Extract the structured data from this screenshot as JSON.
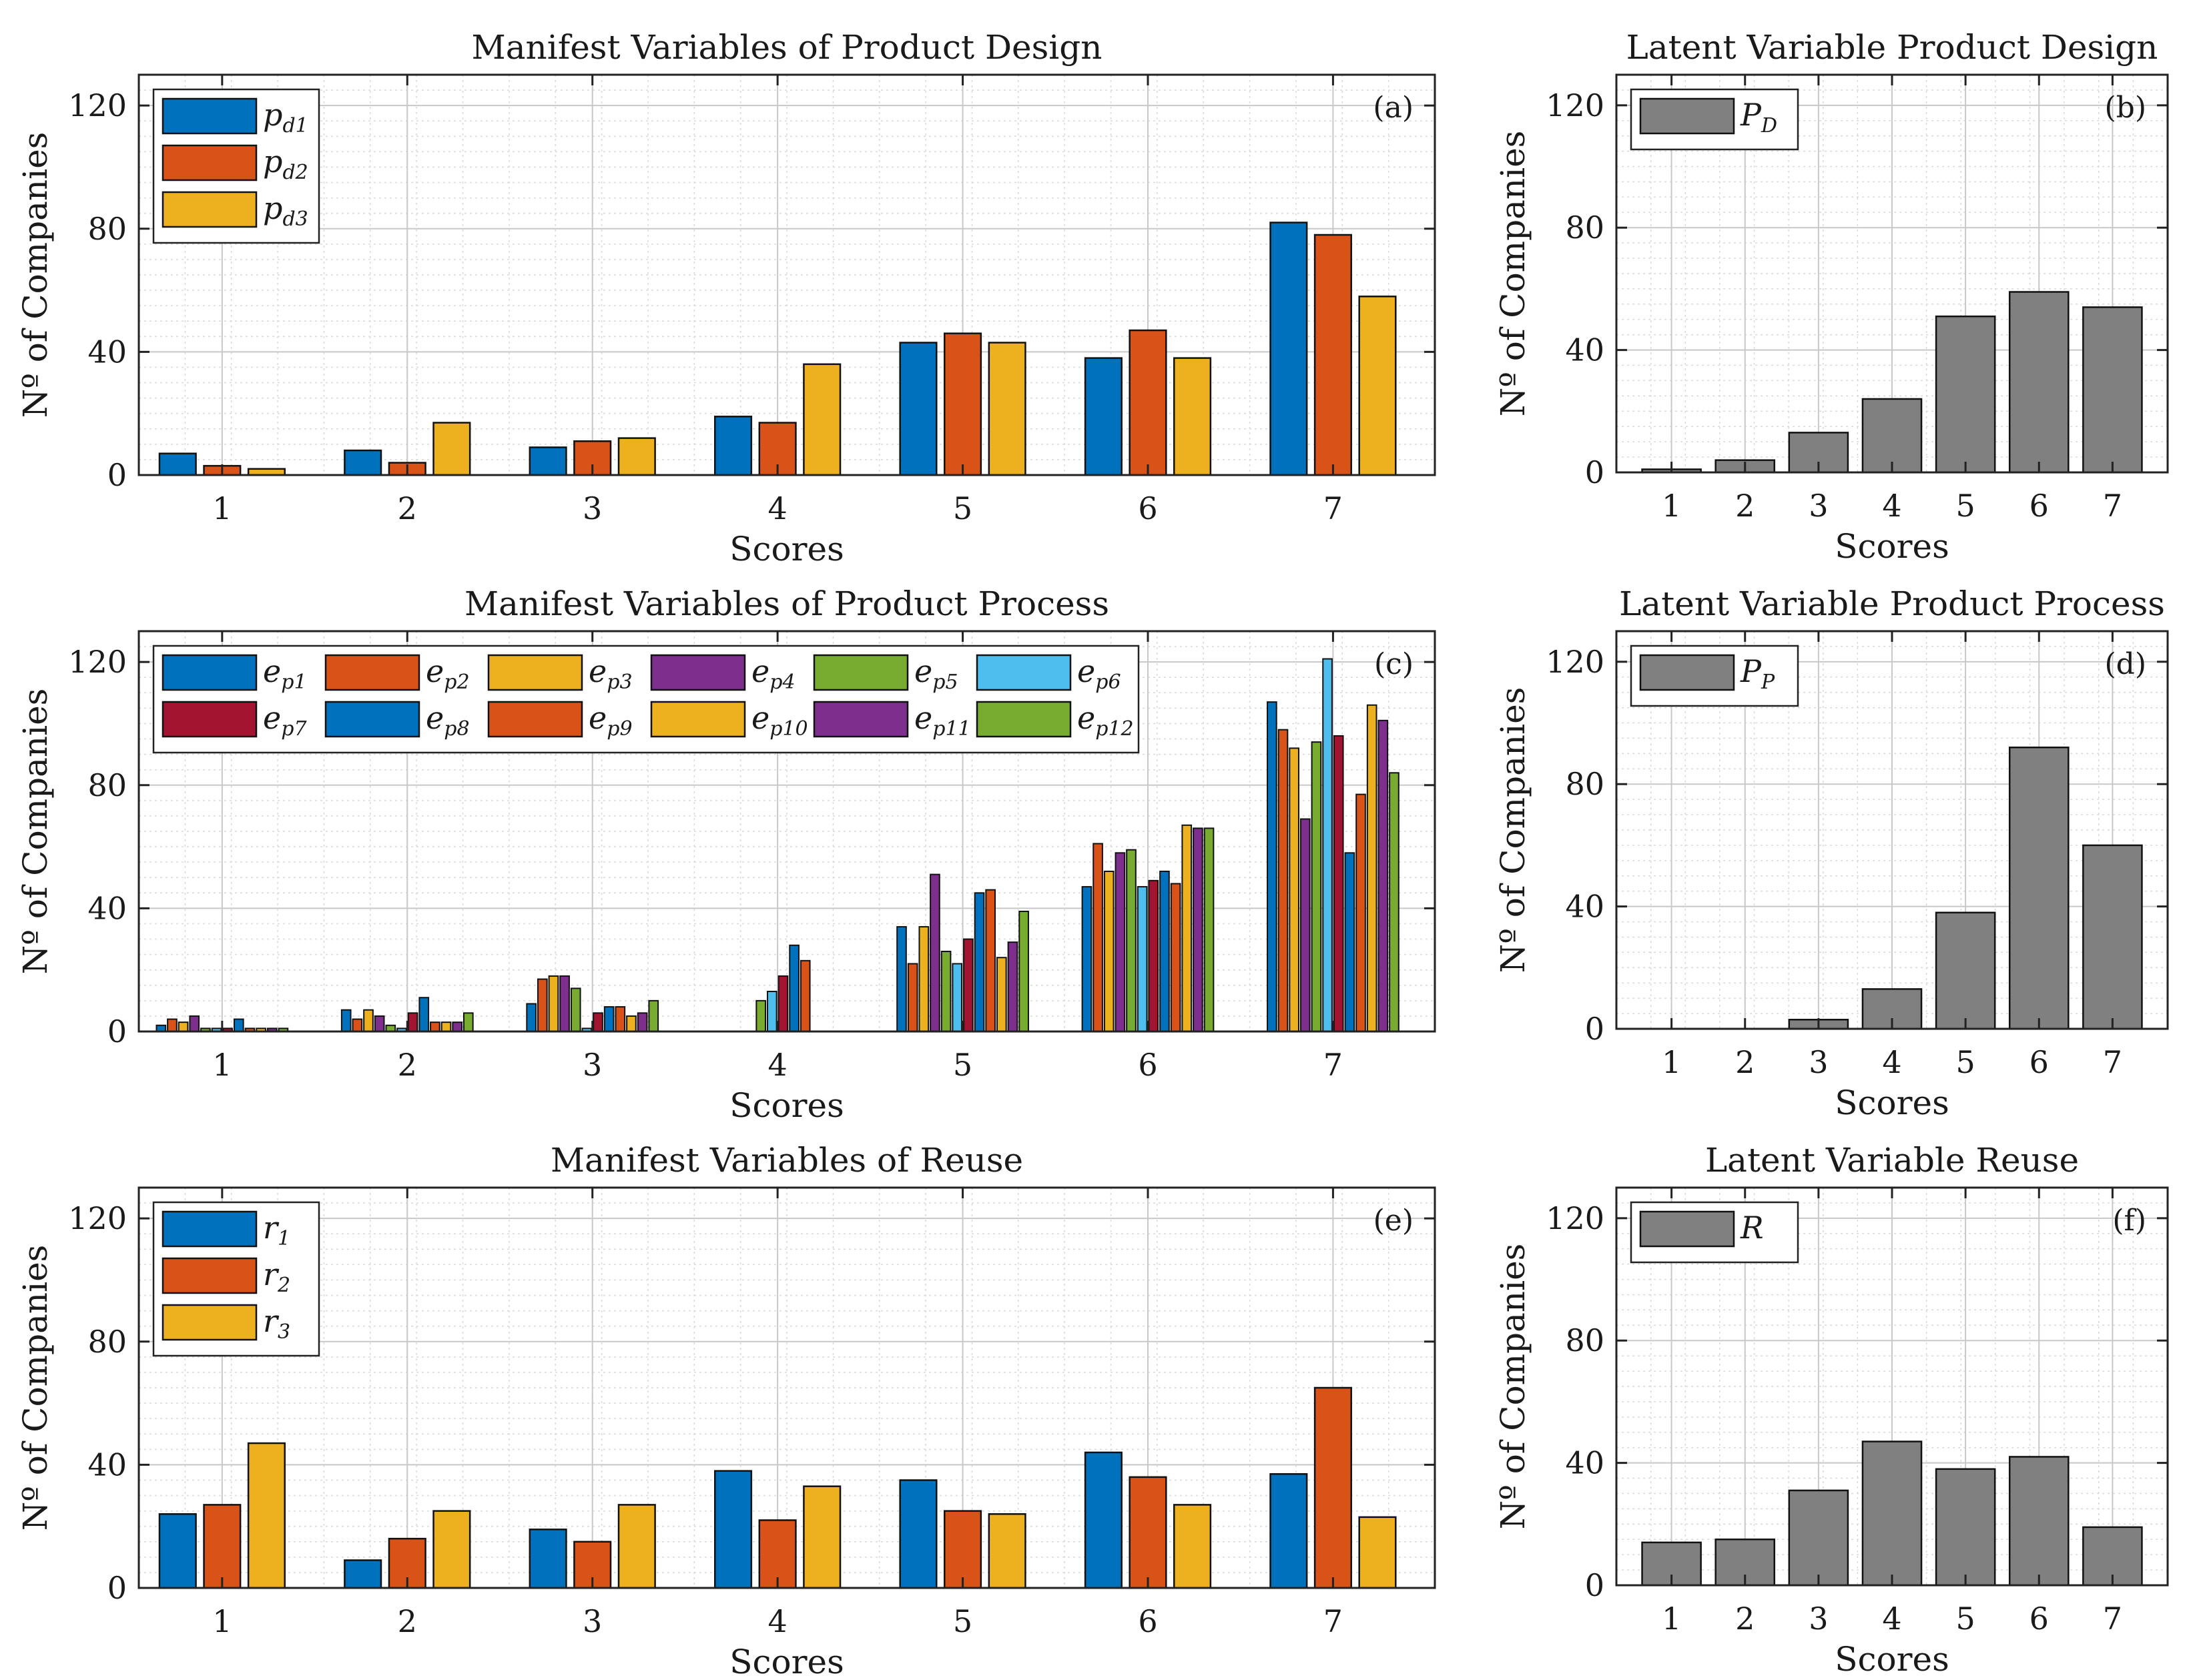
{
  "chart_data": [
    {
      "type": "bar",
      "id": "a",
      "title": "Manifest Variables of Product Design",
      "tag": "(a)",
      "xlabel": "Scores",
      "ylabel": "Nº of Companies",
      "categories": [
        "1",
        "2",
        "3",
        "4",
        "5",
        "6",
        "7"
      ],
      "ylim": [
        0,
        130
      ],
      "yticks": [
        0,
        40,
        80,
        120
      ],
      "legend_position": "top-left",
      "legend_columns": 1,
      "series": [
        {
          "name": "p",
          "sub": "d1",
          "color": "#0072BD",
          "values": [
            7,
            8,
            9,
            19,
            43,
            38,
            82
          ]
        },
        {
          "name": "p",
          "sub": "d2",
          "color": "#D95319",
          "values": [
            3,
            4,
            11,
            17,
            46,
            47,
            78
          ]
        },
        {
          "name": "p",
          "sub": "d3",
          "color": "#EDB120",
          "values": [
            2,
            17,
            12,
            36,
            43,
            38,
            58
          ]
        }
      ]
    },
    {
      "type": "bar",
      "id": "b",
      "title": "Latent Variable Product Design",
      "tag": "(b)",
      "xlabel": "Scores",
      "ylabel": "Nº of Companies",
      "categories": [
        "1",
        "2",
        "3",
        "4",
        "5",
        "6",
        "7"
      ],
      "ylim": [
        0,
        130
      ],
      "yticks": [
        0,
        40,
        80,
        120
      ],
      "legend_position": "top-left",
      "legend_columns": 1,
      "series": [
        {
          "name": "P",
          "sub": "D",
          "color": "#808080",
          "values": [
            1,
            4,
            13,
            24,
            51,
            59,
            54
          ]
        }
      ]
    },
    {
      "type": "bar",
      "id": "c",
      "title": "Manifest Variables of Product Process",
      "tag": "(c)",
      "xlabel": "Scores",
      "ylabel": "Nº of Companies",
      "categories": [
        "1",
        "2",
        "3",
        "4",
        "5",
        "6",
        "7"
      ],
      "ylim": [
        0,
        130
      ],
      "yticks": [
        0,
        40,
        80,
        120
      ],
      "legend_position": "top-left",
      "legend_columns": 6,
      "series": [
        {
          "name": "e",
          "sub": "p1",
          "color": "#0072BD",
          "values": [
            2,
            7,
            9,
            0,
            34,
            47,
            107
          ]
        },
        {
          "name": "e",
          "sub": "p2",
          "color": "#D95319",
          "values": [
            4,
            4,
            17,
            0,
            22,
            61,
            98
          ]
        },
        {
          "name": "e",
          "sub": "p3",
          "color": "#EDB120",
          "values": [
            3,
            7,
            18,
            0,
            34,
            52,
            92
          ]
        },
        {
          "name": "e",
          "sub": "p4",
          "color": "#7E2F8E",
          "values": [
            5,
            5,
            18,
            0,
            51,
            58,
            69
          ]
        },
        {
          "name": "e",
          "sub": "p5",
          "color": "#77AC30",
          "values": [
            1,
            2,
            14,
            10,
            26,
            59,
            94
          ]
        },
        {
          "name": "e",
          "sub": "p6",
          "color": "#4DBEEE",
          "values": [
            1,
            1,
            1,
            13,
            22,
            47,
            121
          ]
        },
        {
          "name": "e",
          "sub": "p7",
          "color": "#A2142F",
          "values": [
            1,
            6,
            6,
            18,
            30,
            49,
            96
          ]
        },
        {
          "name": "e",
          "sub": "p8",
          "color": "#0072BD",
          "values": [
            4,
            11,
            8,
            28,
            45,
            52,
            58
          ]
        },
        {
          "name": "e",
          "sub": "p9",
          "color": "#D95319",
          "values": [
            1,
            3,
            8,
            23,
            46,
            48,
            77
          ]
        },
        {
          "name": "e",
          "sub": "p10",
          "color": "#EDB120",
          "values": [
            1,
            3,
            5,
            0,
            24,
            67,
            106
          ]
        },
        {
          "name": "e",
          "sub": "p11",
          "color": "#7E2F8E",
          "values": [
            1,
            3,
            6,
            0,
            29,
            66,
            101
          ]
        },
        {
          "name": "e",
          "sub": "p12",
          "color": "#77AC30",
          "values": [
            1,
            6,
            10,
            0,
            39,
            66,
            84
          ]
        }
      ]
    },
    {
      "type": "bar",
      "id": "d",
      "title": "Latent Variable Product Process",
      "tag": "(d)",
      "xlabel": "Scores",
      "ylabel": "Nº of Companies",
      "categories": [
        "1",
        "2",
        "3",
        "4",
        "5",
        "6",
        "7"
      ],
      "ylim": [
        0,
        130
      ],
      "yticks": [
        0,
        40,
        80,
        120
      ],
      "legend_position": "top-left",
      "legend_columns": 1,
      "series": [
        {
          "name": "P",
          "sub": "P",
          "color": "#808080",
          "values": [
            0,
            0,
            3,
            13,
            38,
            92,
            60
          ]
        }
      ]
    },
    {
      "type": "bar",
      "id": "e",
      "title": "Manifest Variables of Reuse",
      "tag": "(e)",
      "xlabel": "Scores",
      "ylabel": "Nº of Companies",
      "categories": [
        "1",
        "2",
        "3",
        "4",
        "5",
        "6",
        "7"
      ],
      "ylim": [
        0,
        130
      ],
      "yticks": [
        0,
        40,
        80,
        120
      ],
      "legend_position": "top-left",
      "legend_columns": 1,
      "series": [
        {
          "name": "r",
          "sub": "1",
          "color": "#0072BD",
          "values": [
            24,
            9,
            19,
            38,
            35,
            44,
            37
          ]
        },
        {
          "name": "r",
          "sub": "2",
          "color": "#D95319",
          "values": [
            27,
            16,
            15,
            22,
            25,
            36,
            65
          ]
        },
        {
          "name": "r",
          "sub": "3",
          "color": "#EDB120",
          "values": [
            47,
            25,
            27,
            33,
            24,
            27,
            23
          ]
        }
      ]
    },
    {
      "type": "bar",
      "id": "f",
      "title": "Latent Variable Reuse",
      "tag": "(f)",
      "xlabel": "Scores",
      "ylabel": "Nº of Companies",
      "categories": [
        "1",
        "2",
        "3",
        "4",
        "5",
        "6",
        "7"
      ],
      "ylim": [
        0,
        130
      ],
      "yticks": [
        0,
        40,
        80,
        120
      ],
      "legend_position": "top-left",
      "legend_columns": 1,
      "series": [
        {
          "name": "R",
          "sub": "",
          "color": "#808080",
          "values": [
            14,
            15,
            31,
            47,
            38,
            42,
            19
          ]
        }
      ]
    }
  ]
}
